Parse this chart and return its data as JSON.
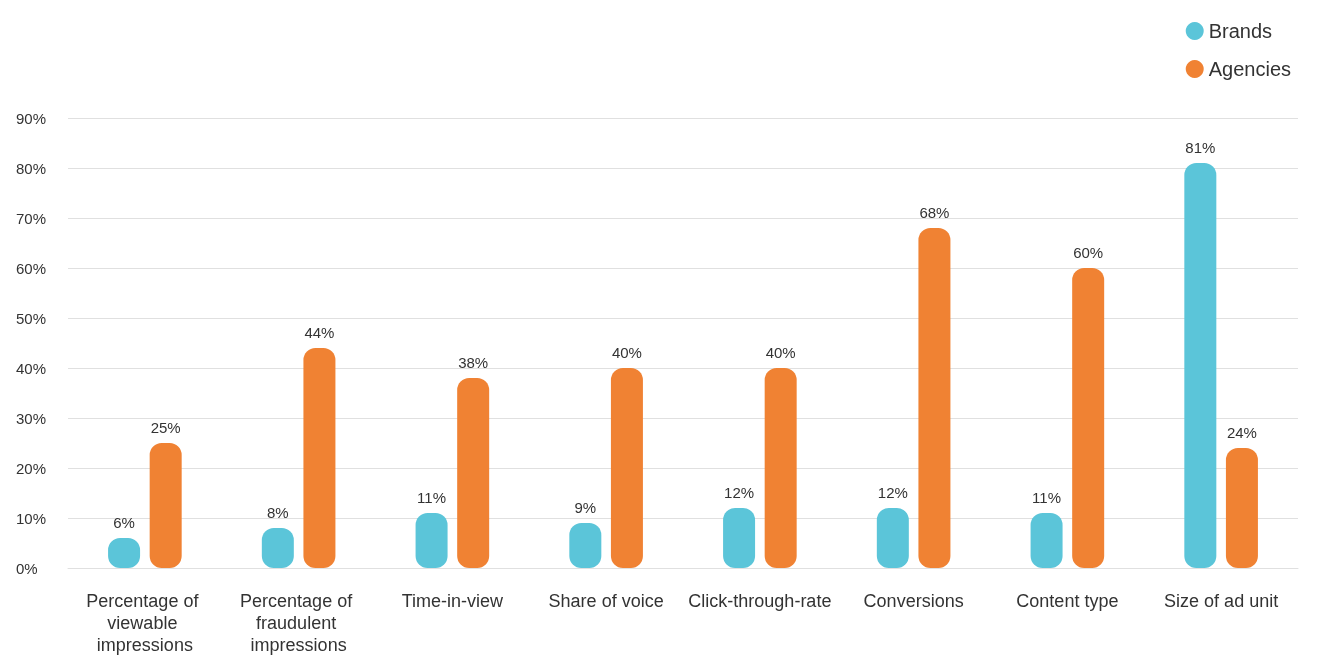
{
  "chart_data": {
    "type": "bar",
    "categories": [
      "Percentage of viewable impressions",
      "Percentage of fraudulent impressions",
      "Time-in-view",
      "Share of voice",
      "Click-through-rate",
      "Conversions",
      "Content type",
      "Size of ad unit"
    ],
    "series": [
      {
        "name": "Brands",
        "color": "#5bc5d9",
        "values": [
          6,
          8,
          11,
          9,
          12,
          12,
          11,
          81
        ],
        "value_labels": [
          "6%",
          "8%",
          "11%",
          "9%",
          "12%",
          "12%",
          "11%",
          "81%"
        ]
      },
      {
        "name": "Agencies",
        "color": "#f08233",
        "values": [
          25,
          44,
          38,
          40,
          40,
          68,
          60,
          24
        ],
        "value_labels": [
          "25%",
          "44%",
          "38%",
          "40%",
          "40%",
          "68%",
          "60%",
          "24%"
        ]
      }
    ],
    "ylim": [
      0,
      90
    ],
    "yticks": [
      {
        "value": 0,
        "label": "0%"
      },
      {
        "value": 10,
        "label": "10%"
      },
      {
        "value": 20,
        "label": "20%"
      },
      {
        "value": 30,
        "label": "30%"
      },
      {
        "value": 40,
        "label": "40%"
      },
      {
        "value": 50,
        "label": "50%"
      },
      {
        "value": 60,
        "label": "60%"
      },
      {
        "value": 70,
        "label": "70%"
      },
      {
        "value": 80,
        "label": "80%"
      },
      {
        "value": 90,
        "label": "90%"
      }
    ],
    "grid": "y",
    "legend": "top right"
  }
}
